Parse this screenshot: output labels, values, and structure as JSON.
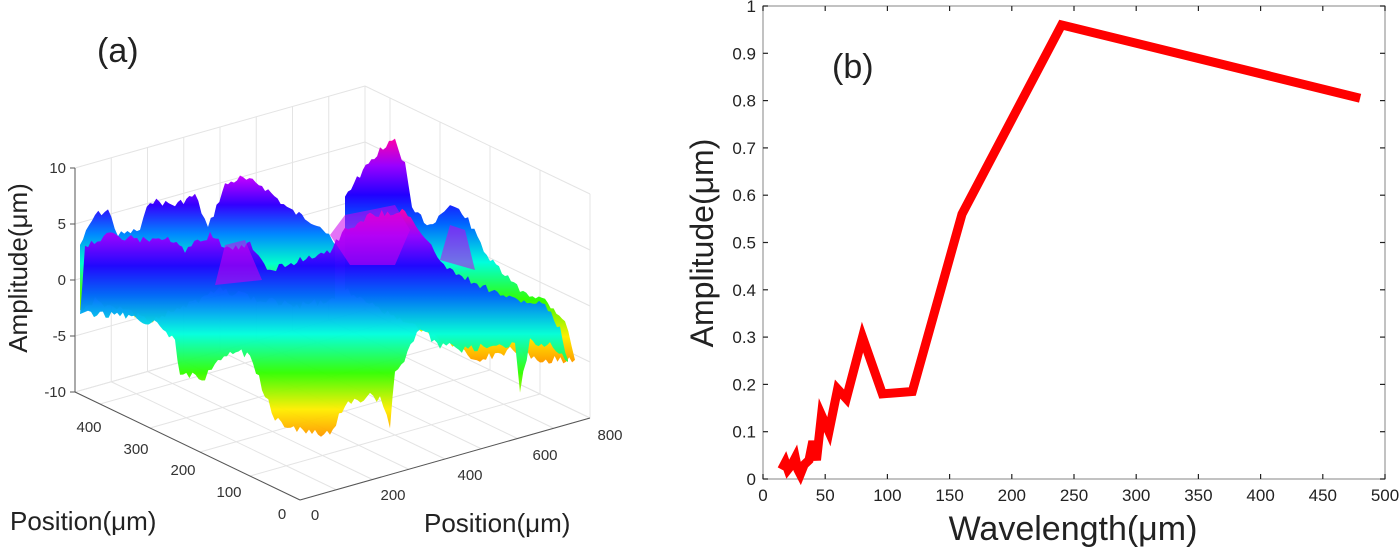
{
  "figure": {
    "panels": [
      "(a)",
      "(b)"
    ]
  },
  "chart_data": [
    {
      "type": "surface3d",
      "panel_label": "(a)",
      "title": "",
      "xlabel": "Position(μm)",
      "ylabel": "Position(μm)",
      "zlabel": "Amplitude(μm)",
      "x_ticks": [
        "0",
        "200",
        "400",
        "600",
        "800"
      ],
      "y_ticks": [
        "0",
        "100",
        "200",
        "300",
        "400"
      ],
      "z_ticks": [
        "10",
        "5",
        "0",
        "-5",
        "-10"
      ],
      "xlim": [
        0,
        800
      ],
      "ylim": [
        0,
        450
      ],
      "zlim": [
        -10,
        10
      ],
      "colormap": "hsv (yellow → green → cyan → blue → magenta)",
      "grid": true,
      "description": "Rough surface topography; heights mostly between about -9 and +9 μm, peak near +9 μm around x≈350 μm"
    },
    {
      "type": "line",
      "panel_label": "(b)",
      "title": "",
      "xlabel": "Wavelength(μm)",
      "ylabel": "Amplitude(μm)",
      "xlim": [
        0,
        500
      ],
      "ylim": [
        0,
        1
      ],
      "x_ticks": [
        "0",
        "50",
        "100",
        "150",
        "200",
        "250",
        "300",
        "350",
        "400",
        "450",
        "500"
      ],
      "y_ticks": [
        "0",
        "0.1",
        "0.2",
        "0.3",
        "0.4",
        "0.5",
        "0.6",
        "0.7",
        "0.8",
        "0.9",
        "1"
      ],
      "grid": false,
      "legend": "none",
      "series": [
        {
          "name": "amplitude",
          "color": "#ff0000",
          "x": [
            15,
            18,
            20,
            23,
            26,
            28,
            30,
            33,
            37,
            40,
            43,
            47,
            53,
            60,
            67,
            80,
            96,
            120,
            160,
            240,
            480
          ],
          "y": [
            0.02,
            0.035,
            0.02,
            0.03,
            0.045,
            0.02,
            0.01,
            0.03,
            0.04,
            0.08,
            0.04,
            0.135,
            0.1,
            0.19,
            0.17,
            0.3,
            0.18,
            0.185,
            0.56,
            0.96,
            0.805
          ]
        }
      ]
    }
  ]
}
